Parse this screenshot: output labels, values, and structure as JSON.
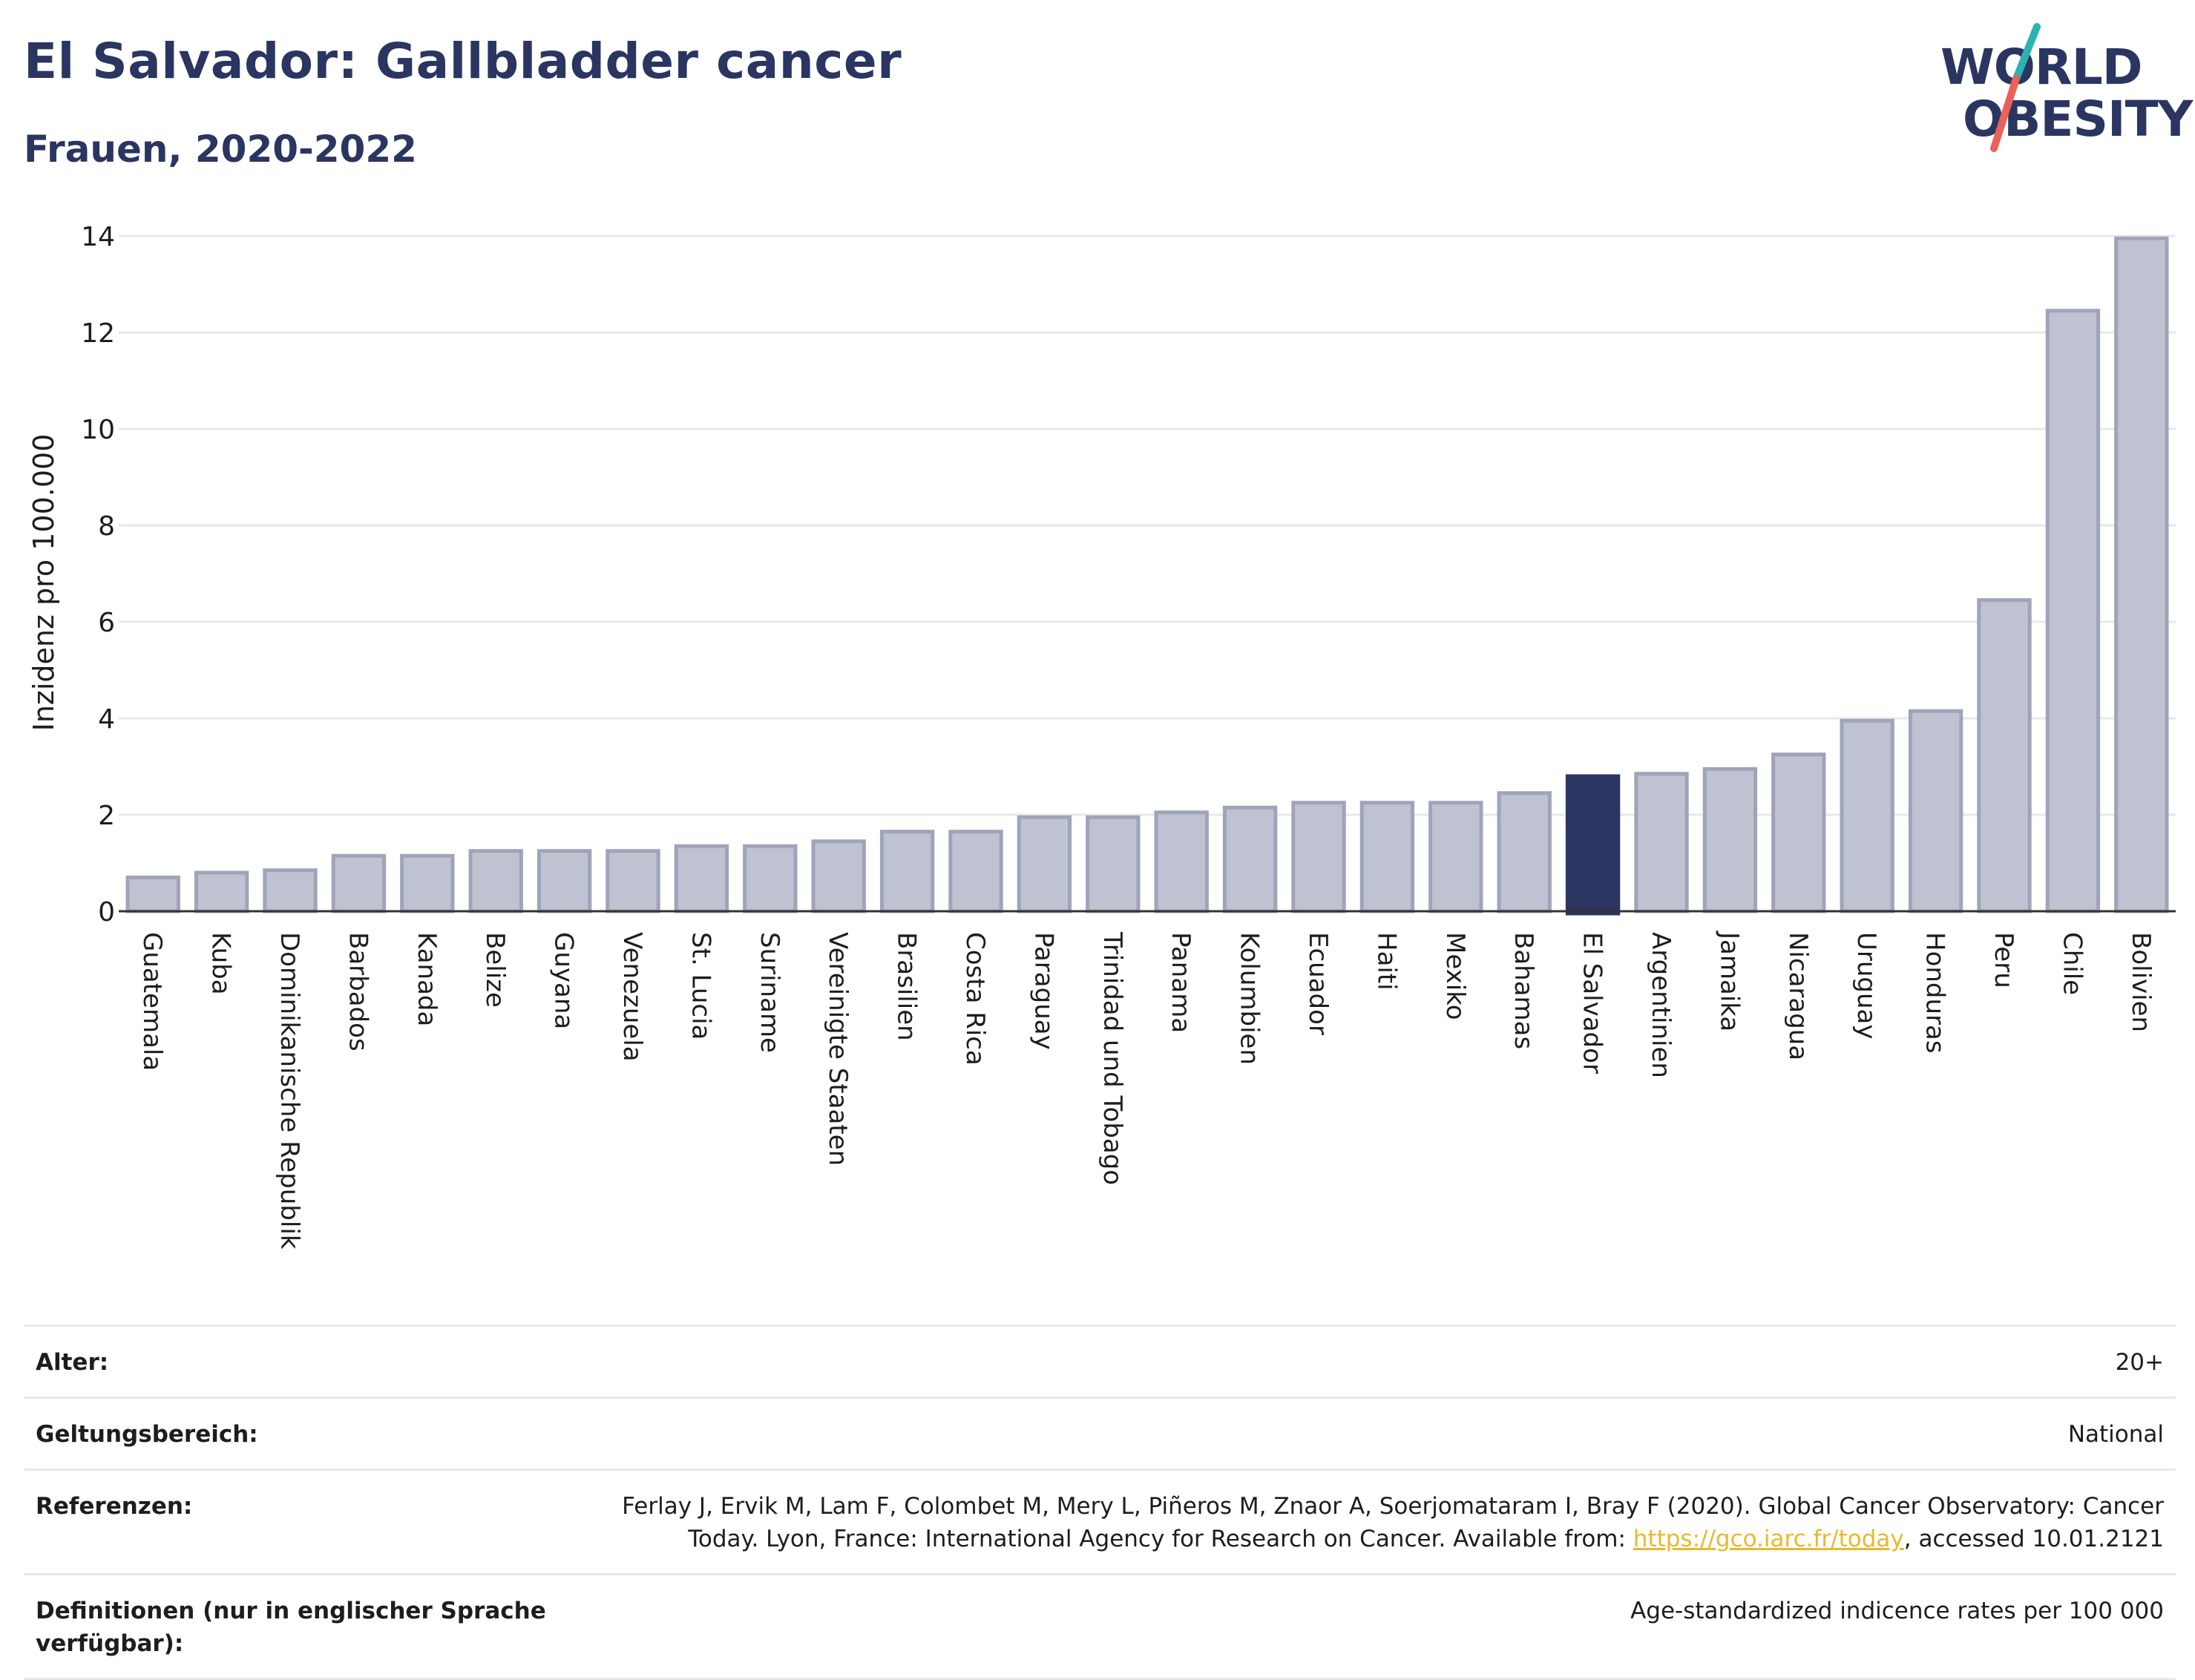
{
  "header": {
    "title": "El Salvador: Gallbladder cancer",
    "subtitle": "Frauen, 2020-2022"
  },
  "logo": {
    "line1": "WORLD",
    "line2": "OBESITY",
    "slash_color_top": "#2bb3b1",
    "slash_color_bottom": "#e8615a"
  },
  "colors": {
    "highlight_bar": "#2b3561",
    "other_bar_fill": "#bfc2d0",
    "other_bar_stroke": "#9fa4ba",
    "grid": "#e6e8ee",
    "axis_line": "#333333"
  },
  "chart_data": {
    "type": "bar",
    "title": "",
    "xlabel": "",
    "ylabel": "Inzidenz pro 100.000",
    "ylim": [
      0,
      14
    ],
    "yticks": [
      0,
      2,
      4,
      6,
      8,
      10,
      12,
      14
    ],
    "grid": true,
    "highlight": "El Salvador",
    "categories": [
      "Guatemala",
      "Kuba",
      "Dominikanische Republik",
      "Barbados",
      "Kanada",
      "Belize",
      "Guyana",
      "Venezuela",
      "St. Lucia",
      "Suriname",
      "Vereinigte Staaten",
      "Brasilien",
      "Costa Rica",
      "Paraguay",
      "Trinidad und Tobago",
      "Panama",
      "Kolumbien",
      "Ecuador",
      "Haiti",
      "Mexiko",
      "Bahamas",
      "El Salvador",
      "Argentinien",
      "Jamaika",
      "Nicaragua",
      "Uruguay",
      "Honduras",
      "Peru",
      "Chile",
      "Bolivien"
    ],
    "values": [
      0.7,
      0.8,
      0.85,
      1.15,
      1.15,
      1.25,
      1.25,
      1.25,
      1.35,
      1.35,
      1.45,
      1.65,
      1.65,
      1.95,
      1.95,
      2.05,
      2.15,
      2.25,
      2.25,
      2.25,
      2.45,
      2.8,
      2.85,
      2.95,
      3.25,
      3.95,
      4.15,
      6.45,
      12.45,
      13.95
    ]
  },
  "meta": [
    {
      "label": "Alter:",
      "value": "20+"
    },
    {
      "label": "Geltungsbereich:",
      "value": "National"
    },
    {
      "label": "Referenzen:",
      "value_before": "Ferlay J, Ervik M, Lam F, Colombet M, Mery L, Piñeros M, Znaor A, Soerjomataram I, Bray F (2020). Global Cancer Observatory: Cancer Today. Lyon, France: International Agency for Research on Cancer. Available from: ",
      "link": "https://gco.iarc.fr/today",
      "value_after": ", accessed 10.01.2121"
    },
    {
      "label": "Definitionen (nur in englischer Sprache verfügbar):",
      "value": "Age-standardized indicence rates per 100 000"
    }
  ]
}
